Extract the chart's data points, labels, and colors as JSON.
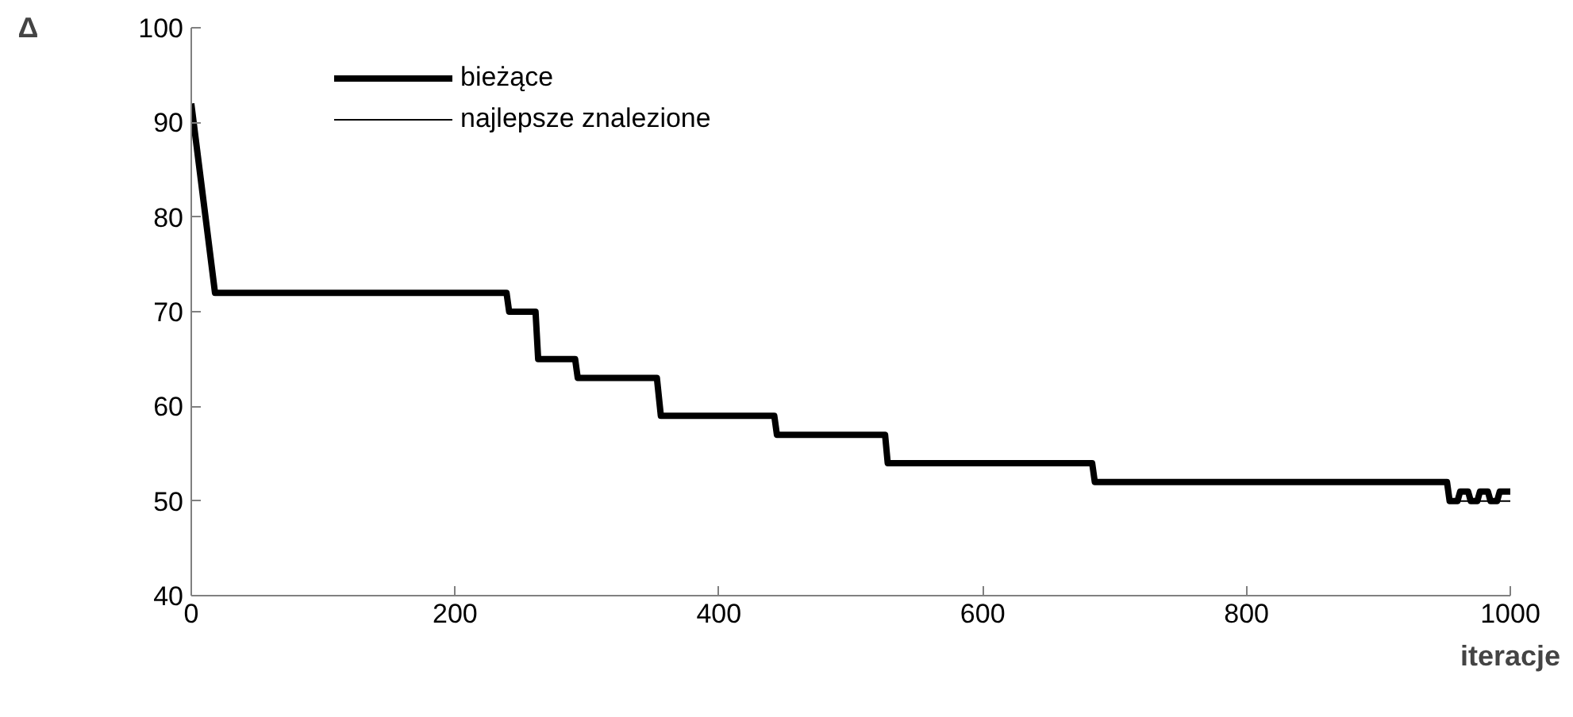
{
  "chart_data": {
    "type": "line",
    "xlabel": "iteracje",
    "ylabel": "Δ",
    "xlim": [
      0,
      1000
    ],
    "ylim": [
      40,
      100
    ],
    "xticks": [
      0,
      200,
      400,
      600,
      800,
      1000
    ],
    "yticks": [
      40,
      50,
      60,
      70,
      80,
      90,
      100
    ],
    "grid": false,
    "legend": "top left",
    "marker": "none",
    "line_style": "solid",
    "series": [
      {
        "name": "bieżące",
        "color": "#000000",
        "x": [
          0,
          18,
          239,
          241,
          261,
          263,
          291,
          293,
          353,
          356,
          442,
          444,
          526,
          528,
          683,
          685,
          952,
          954,
          960,
          962,
          968,
          970,
          975,
          977,
          983,
          985,
          990,
          992,
          1000
        ],
        "values": [
          92,
          72,
          72,
          70,
          70,
          65,
          65,
          63,
          63,
          59,
          59,
          57,
          57,
          54,
          54,
          52,
          52,
          50,
          50,
          51,
          51,
          50,
          50,
          51,
          51,
          50,
          50,
          51,
          51
        ]
      },
      {
        "name": "najlepsze znalezione",
        "color": "#000000",
        "x": [
          952,
          1000
        ],
        "values": [
          50,
          50
        ]
      }
    ]
  }
}
